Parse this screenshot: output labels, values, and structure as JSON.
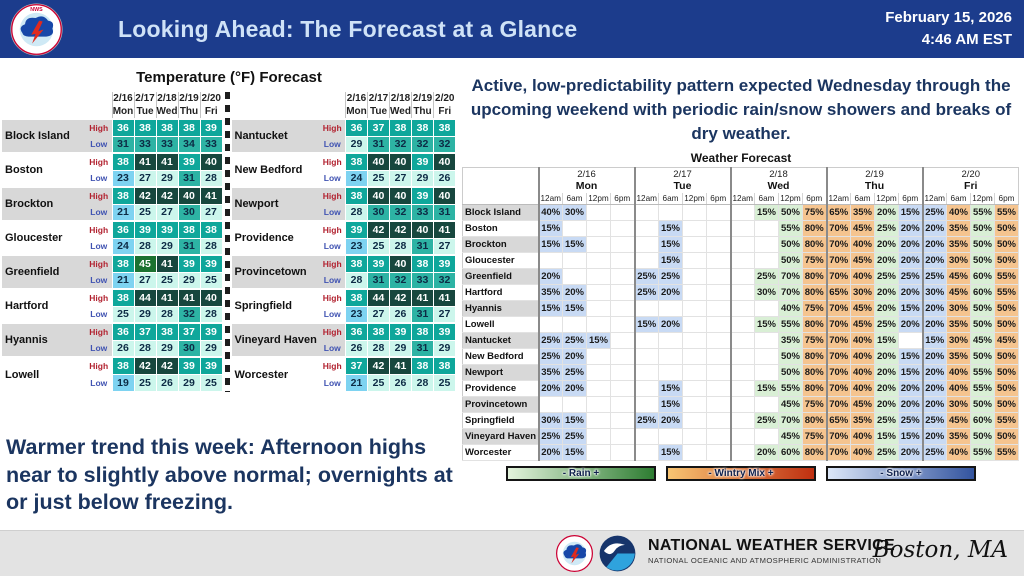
{
  "header": {
    "title": "Looking Ahead: The Forecast at a Glance",
    "date": "February 15, 2026",
    "time": "4:46 AM EST"
  },
  "temp_section": {
    "title": "Temperature (°F) Forecast",
    "high_label": "High",
    "low_label": "Low"
  },
  "right_panel": {
    "headline": "Active, low-predictability pattern expected Wednesday through the upcoming weekend with periodic rain/snow showers and breaks of dry weather.",
    "legend": [
      {
        "label": "- Rain +",
        "type": "rain"
      },
      {
        "label": "- Wintry Mix +",
        "type": "wintry"
      },
      {
        "label": "- Snow +",
        "type": "snow"
      }
    ]
  },
  "bottom_note": "Warmer trend this week: Afternoon highs near to slightly above normal; overnights at or just below freezing.",
  "footer": {
    "agency": "NATIONAL WEATHER SERVICE",
    "sub_agency": "NATIONAL OCEANIC AND ATMOSPHERIC ADMINISTRATION",
    "location": "Boston, MA"
  },
  "colors": {
    "header_bg": "#1c3c8c",
    "title_text": "#cfe2f7",
    "navy_text": "#1b3560",
    "stripe_gray": "#d8d8d8",
    "high_teal": "#0fa79b",
    "high_dark": "#17473e",
    "high_green": "#1b7230",
    "low_cold": "#7ed3f1",
    "low_mild": "#ccf6ec",
    "low_warm": "#2db3a4",
    "rain": "#d9efd5",
    "wintry": "#f5c48f",
    "snow": "#c8daf4",
    "rain_dark": "#2e7d32",
    "wintry_dark": "#bf2f10",
    "snow_dark": "#33549f"
  },
  "chart_data": [
    {
      "type": "table",
      "title": "Temperature (°F) Forecast (left table)",
      "dates": [
        "2/16",
        "2/17",
        "2/18",
        "2/19",
        "2/20"
      ],
      "days": [
        "Mon",
        "Tue",
        "Wed",
        "Thu",
        "Fri"
      ],
      "rows": [
        {
          "city": "Block Island",
          "high": [
            36,
            38,
            38,
            38,
            39
          ],
          "low": [
            31,
            33,
            33,
            34,
            33
          ]
        },
        {
          "city": "Boston",
          "high": [
            38,
            41,
            41,
            39,
            40
          ],
          "low": [
            23,
            27,
            29,
            31,
            28
          ]
        },
        {
          "city": "Brockton",
          "high": [
            38,
            42,
            42,
            40,
            41
          ],
          "low": [
            21,
            25,
            27,
            30,
            27
          ]
        },
        {
          "city": "Gloucester",
          "high": [
            36,
            39,
            39,
            38,
            38
          ],
          "low": [
            24,
            28,
            29,
            31,
            28
          ]
        },
        {
          "city": "Greenfield",
          "high": [
            38,
            45,
            41,
            39,
            39
          ],
          "low": [
            21,
            27,
            25,
            29,
            25
          ]
        },
        {
          "city": "Hartford",
          "high": [
            38,
            44,
            41,
            41,
            40
          ],
          "low": [
            25,
            29,
            28,
            32,
            28
          ]
        },
        {
          "city": "Hyannis",
          "high": [
            36,
            37,
            38,
            37,
            39
          ],
          "low": [
            26,
            28,
            29,
            30,
            29
          ]
        },
        {
          "city": "Lowell",
          "high": [
            38,
            42,
            42,
            39,
            39
          ],
          "low": [
            19,
            25,
            26,
            29,
            25
          ]
        }
      ]
    },
    {
      "type": "table",
      "title": "Temperature (°F) Forecast (right table)",
      "dates": [
        "2/16",
        "2/17",
        "2/18",
        "2/19",
        "2/20"
      ],
      "days": [
        "Mon",
        "Tue",
        "Wed",
        "Thu",
        "Fri"
      ],
      "rows": [
        {
          "city": "Nantucket",
          "high": [
            36,
            37,
            38,
            38,
            38
          ],
          "low": [
            29,
            31,
            32,
            32,
            32
          ]
        },
        {
          "city": "New Bedford",
          "high": [
            38,
            40,
            40,
            39,
            40
          ],
          "low": [
            24,
            25,
            27,
            29,
            26
          ]
        },
        {
          "city": "Newport",
          "high": [
            38,
            40,
            40,
            39,
            40
          ],
          "low": [
            28,
            30,
            32,
            33,
            31
          ]
        },
        {
          "city": "Providence",
          "high": [
            39,
            42,
            42,
            40,
            41
          ],
          "low": [
            23,
            25,
            28,
            31,
            27
          ]
        },
        {
          "city": "Provincetown",
          "high": [
            38,
            39,
            40,
            38,
            39
          ],
          "low": [
            28,
            31,
            32,
            33,
            32
          ]
        },
        {
          "city": "Springfield",
          "high": [
            38,
            44,
            42,
            41,
            41
          ],
          "low": [
            23,
            27,
            26,
            31,
            27
          ]
        },
        {
          "city": "Vineyard Haven",
          "high": [
            36,
            38,
            39,
            38,
            39
          ],
          "low": [
            26,
            28,
            29,
            31,
            29
          ]
        },
        {
          "city": "Worcester",
          "high": [
            37,
            42,
            41,
            38,
            38
          ],
          "low": [
            21,
            25,
            26,
            28,
            25
          ]
        }
      ]
    },
    {
      "type": "table",
      "title": "Weather Forecast",
      "unit": "percent probability",
      "days": [
        {
          "date": "2/16",
          "day": "Mon"
        },
        {
          "date": "2/17",
          "day": "Tue"
        },
        {
          "date": "2/18",
          "day": "Wed"
        },
        {
          "date": "2/19",
          "day": "Thu"
        },
        {
          "date": "2/20",
          "day": "Fri"
        }
      ],
      "times": [
        "12am",
        "6am",
        "12pm",
        "6pm"
      ],
      "col_types": [
        "snow",
        "snow",
        "snow",
        "snow",
        "snow",
        "snow",
        "snow",
        "snow",
        "snow",
        "rain",
        "rain",
        "wintry",
        "wintry",
        "wintry",
        "rain",
        "snow",
        "snow",
        "wintry",
        "rain",
        "wintry"
      ],
      "rows": [
        {
          "city": "Block Island",
          "values": [
            40,
            30,
            "",
            "",
            "",
            "",
            "",
            "",
            "",
            15,
            50,
            75,
            65,
            35,
            20,
            15,
            25,
            40,
            55,
            55
          ]
        },
        {
          "city": "Boston",
          "values": [
            15,
            "",
            "",
            "",
            "",
            15,
            "",
            "",
            "",
            "",
            55,
            80,
            70,
            45,
            25,
            20,
            20,
            35,
            50,
            50
          ]
        },
        {
          "city": "Brockton",
          "values": [
            15,
            15,
            "",
            "",
            "",
            15,
            "",
            "",
            "",
            "",
            50,
            80,
            70,
            40,
            20,
            20,
            20,
            35,
            50,
            50
          ]
        },
        {
          "city": "Gloucester",
          "values": [
            "",
            "",
            "",
            "",
            "",
            15,
            "",
            "",
            "",
            "",
            50,
            75,
            70,
            45,
            20,
            20,
            20,
            30,
            50,
            50
          ]
        },
        {
          "city": "Greenfield",
          "values": [
            20,
            "",
            "",
            "",
            25,
            25,
            "",
            "",
            "",
            25,
            70,
            80,
            70,
            40,
            25,
            25,
            25,
            45,
            60,
            55
          ]
        },
        {
          "city": "Hartford",
          "values": [
            35,
            20,
            "",
            "",
            25,
            20,
            "",
            "",
            "",
            30,
            70,
            80,
            65,
            30,
            20,
            20,
            30,
            45,
            60,
            55
          ]
        },
        {
          "city": "Hyannis",
          "values": [
            15,
            15,
            "",
            "",
            "",
            "",
            "",
            "",
            "",
            "",
            40,
            75,
            70,
            45,
            20,
            15,
            20,
            30,
            50,
            50
          ]
        },
        {
          "city": "Lowell",
          "values": [
            "",
            "",
            "",
            "",
            15,
            20,
            "",
            "",
            "",
            15,
            55,
            80,
            70,
            45,
            25,
            20,
            20,
            35,
            50,
            50
          ]
        },
        {
          "city": "Nantucket",
          "values": [
            25,
            25,
            15,
            "",
            "",
            "",
            "",
            "",
            "",
            "",
            35,
            75,
            70,
            40,
            15,
            "",
            15,
            30,
            45,
            45
          ]
        },
        {
          "city": "New Bedford",
          "values": [
            25,
            20,
            "",
            "",
            "",
            "",
            "",
            "",
            "",
            "",
            50,
            80,
            70,
            40,
            20,
            15,
            20,
            35,
            50,
            50
          ]
        },
        {
          "city": "Newport",
          "values": [
            35,
            25,
            "",
            "",
            "",
            "",
            "",
            "",
            "",
            "",
            50,
            80,
            70,
            40,
            20,
            15,
            20,
            40,
            55,
            50
          ]
        },
        {
          "city": "Providence",
          "values": [
            20,
            20,
            "",
            "",
            "",
            15,
            "",
            "",
            "",
            15,
            55,
            80,
            70,
            40,
            20,
            20,
            20,
            40,
            55,
            50
          ]
        },
        {
          "city": "Provincetown",
          "values": [
            "",
            "",
            "",
            "",
            "",
            15,
            "",
            "",
            "",
            "",
            45,
            75,
            70,
            45,
            20,
            20,
            20,
            30,
            50,
            50
          ]
        },
        {
          "city": "Springfield",
          "values": [
            30,
            15,
            "",
            "",
            25,
            20,
            "",
            "",
            "",
            25,
            70,
            80,
            65,
            35,
            25,
            25,
            25,
            45,
            60,
            55
          ]
        },
        {
          "city": "Vineyard Haven",
          "values": [
            25,
            25,
            "",
            "",
            "",
            "",
            "",
            "",
            "",
            "",
            45,
            75,
            70,
            40,
            15,
            15,
            20,
            35,
            50,
            50
          ]
        },
        {
          "city": "Worcester",
          "values": [
            20,
            15,
            "",
            "",
            "",
            15,
            "",
            "",
            "",
            20,
            60,
            80,
            70,
            40,
            25,
            20,
            25,
            40,
            55,
            55
          ]
        }
      ]
    }
  ]
}
